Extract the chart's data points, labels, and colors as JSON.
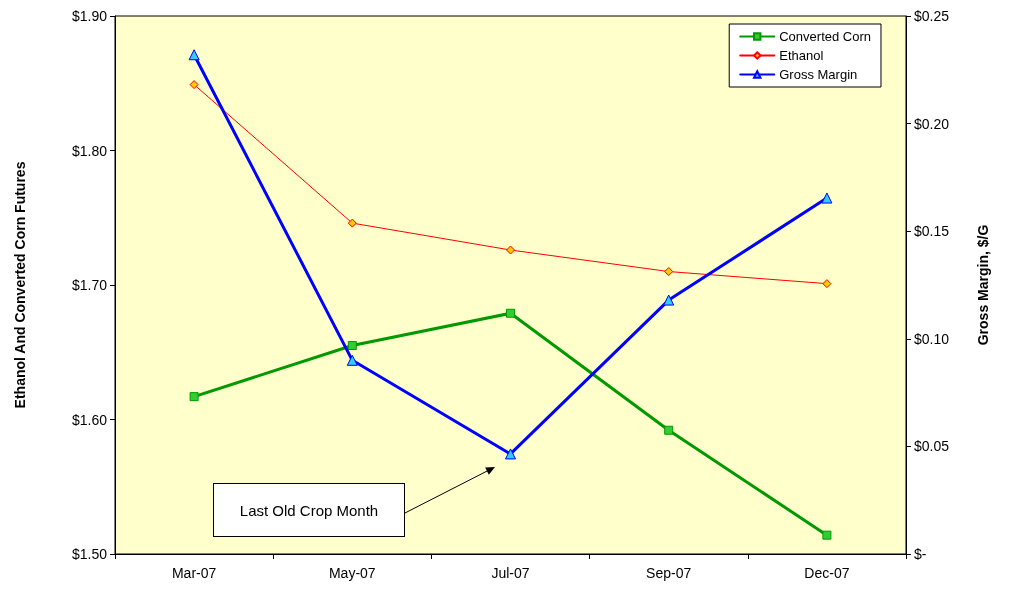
{
  "chart_data": {
    "type": "line",
    "categories": [
      "Mar-07",
      "May-07",
      "Jul-07",
      "Sep-07",
      "Dec-07"
    ],
    "ylabel": "Ethanol And Converted Corn Futures",
    "y2label": "Gross Margin, $/G",
    "series": [
      {
        "name": "Converted Corn",
        "color": "#009900",
        "marker": "square",
        "values": [
          1.617,
          1.655,
          1.679,
          1.592,
          1.514
        ]
      },
      {
        "name": "Ethanol",
        "color": "#ff0000",
        "marker": "diamond",
        "values": [
          1.849,
          1.746,
          1.726,
          1.71,
          1.701
        ]
      },
      {
        "name": "Gross Margin",
        "color": "#0000ff",
        "marker": "triangle",
        "axis": "y2",
        "values": [
          0.232,
          0.09,
          0.0465,
          0.118,
          0.1654
        ]
      }
    ],
    "ylim": [
      1.5,
      1.9
    ],
    "yticks": [
      {
        "value": 1.5,
        "label": "$1.50"
      },
      {
        "value": 1.6,
        "label": "$1.60"
      },
      {
        "value": 1.7,
        "label": "$1.70"
      },
      {
        "value": 1.8,
        "label": "$1.80"
      },
      {
        "value": 1.9,
        "label": "$1.90"
      }
    ],
    "y2lim": [
      0,
      0.25
    ],
    "y2ticks": [
      {
        "value": 0,
        "label": "$-"
      },
      {
        "value": 0.05,
        "label": "$0.05"
      },
      {
        "value": 0.1,
        "label": "$0.10"
      },
      {
        "value": 0.15,
        "label": "$0.15"
      },
      {
        "value": 0.2,
        "label": "$0.20"
      },
      {
        "value": 0.25,
        "label": "$0.25"
      }
    ],
    "annotations": [
      "Last Old Crop Month"
    ],
    "legend": "top right",
    "grid": false
  }
}
